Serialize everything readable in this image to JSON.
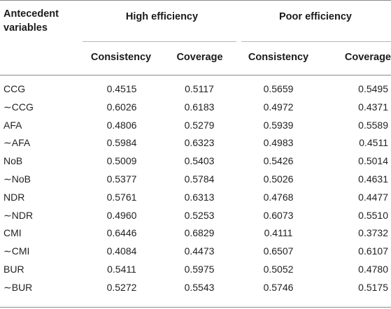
{
  "table": {
    "header": {
      "row_var_label": "Antecedent variables",
      "groups": [
        "High efficiency",
        "Poor efficiency"
      ],
      "subcolumns": [
        "Consistency",
        "Coverage",
        "Consistency",
        "Coverage"
      ]
    },
    "rows": [
      {
        "label": "CCG",
        "values": [
          "0.4515",
          "0.5117",
          "0.5659",
          "0.5495"
        ]
      },
      {
        "label": "∼CCG",
        "values": [
          "0.6026",
          "0.6183",
          "0.4972",
          "0.4371"
        ]
      },
      {
        "label": "AFA",
        "values": [
          "0.4806",
          "0.5279",
          "0.5939",
          "0.5589"
        ]
      },
      {
        "label": "∼AFA",
        "values": [
          "0.5984",
          "0.6323",
          "0.4983",
          "0.4511"
        ]
      },
      {
        "label": "NoB",
        "values": [
          "0.5009",
          "0.5403",
          "0.5426",
          "0.5014"
        ]
      },
      {
        "label": "∼NoB",
        "values": [
          "0.5377",
          "0.5784",
          "0.5026",
          "0.4631"
        ]
      },
      {
        "label": "NDR",
        "values": [
          "0.5761",
          "0.6313",
          "0.4768",
          "0.4477"
        ]
      },
      {
        "label": "∼NDR",
        "values": [
          "0.4960",
          "0.5253",
          "0.6073",
          "0.5510"
        ]
      },
      {
        "label": "CMI",
        "values": [
          "0.6446",
          "0.6829",
          "0.4111",
          "0.3732"
        ]
      },
      {
        "label": "∼CMI",
        "values": [
          "0.4084",
          "0.4473",
          "0.6507",
          "0.6107"
        ]
      },
      {
        "label": "BUR",
        "values": [
          "0.5411",
          "0.5975",
          "0.5052",
          "0.4780"
        ]
      },
      {
        "label": "∼BUR",
        "values": [
          "0.5272",
          "0.5543",
          "0.5746",
          "0.5175"
        ]
      }
    ]
  }
}
